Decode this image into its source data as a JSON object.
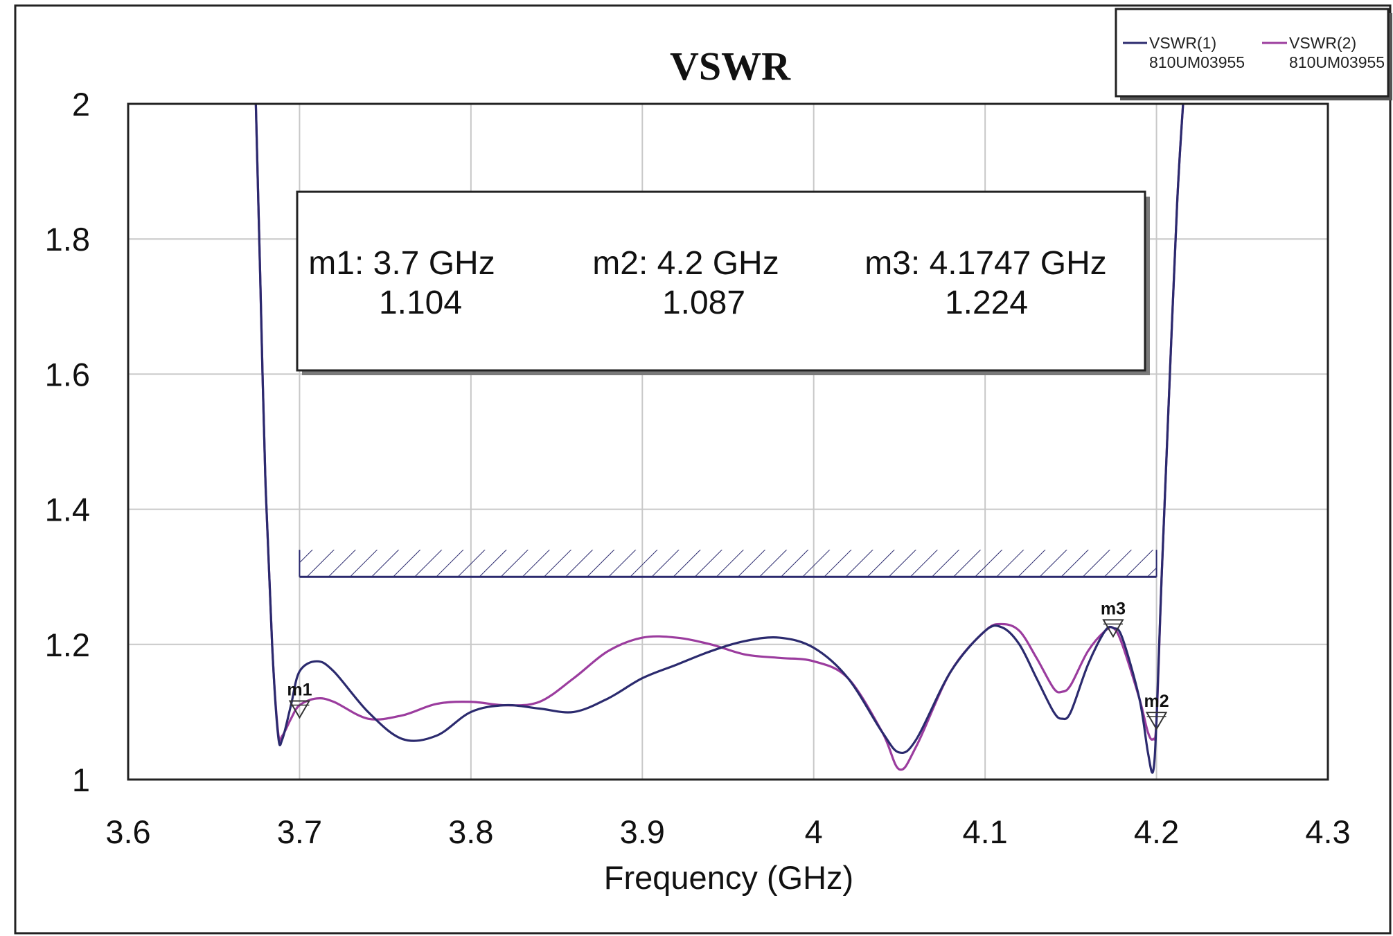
{
  "chart_data": {
    "type": "line",
    "title": "VSWR",
    "xlabel": "Frequency (GHz)",
    "ylabel": "",
    "xlim": [
      3.6,
      4.3
    ],
    "ylim": [
      1,
      2
    ],
    "x_ticks": [
      "3.6",
      "3.7",
      "3.8",
      "3.9",
      "4",
      "4.1",
      "4.2",
      "4.3"
    ],
    "y_ticks": [
      "1",
      "1.2",
      "1.4",
      "1.6",
      "1.8",
      "2"
    ],
    "grid": true,
    "legend_position": "top-right",
    "series": [
      {
        "name": "VSWR(1)",
        "subname": "810UM03955",
        "color": "#2b2a6e",
        "x": [
          3.6745,
          3.677,
          3.68,
          3.684,
          3.6875,
          3.69,
          3.695,
          3.7,
          3.71,
          3.72,
          3.74,
          3.76,
          3.78,
          3.8,
          3.82,
          3.84,
          3.86,
          3.88,
          3.9,
          3.92,
          3.94,
          3.96,
          3.98,
          4.0,
          4.02,
          4.04,
          4.05,
          4.06,
          4.08,
          4.1,
          4.11,
          4.12,
          4.13,
          4.14,
          4.145,
          4.15,
          4.16,
          4.17,
          4.175,
          4.18,
          4.19,
          4.195,
          4.198,
          4.2,
          4.203,
          4.207,
          4.212,
          4.2155
        ],
        "y": [
          2.0,
          1.75,
          1.45,
          1.2,
          1.065,
          1.06,
          1.11,
          1.16,
          1.175,
          1.16,
          1.1,
          1.06,
          1.065,
          1.1,
          1.11,
          1.105,
          1.1,
          1.12,
          1.15,
          1.17,
          1.19,
          1.205,
          1.21,
          1.195,
          1.15,
          1.07,
          1.04,
          1.06,
          1.16,
          1.22,
          1.225,
          1.2,
          1.15,
          1.1,
          1.09,
          1.1,
          1.17,
          1.22,
          1.224,
          1.21,
          1.12,
          1.04,
          1.012,
          1.087,
          1.3,
          1.55,
          1.85,
          2.0
        ]
      },
      {
        "name": "VSWR(2)",
        "subname": "810UM03955",
        "color": "#9b3c9e",
        "x": [
          3.6745,
          3.677,
          3.68,
          3.684,
          3.6875,
          3.69,
          3.695,
          3.7,
          3.71,
          3.72,
          3.74,
          3.76,
          3.78,
          3.8,
          3.82,
          3.84,
          3.86,
          3.88,
          3.9,
          3.92,
          3.94,
          3.96,
          3.98,
          4.0,
          4.02,
          4.04,
          4.05,
          4.06,
          4.08,
          4.1,
          4.11,
          4.12,
          4.13,
          4.14,
          4.145,
          4.15,
          4.16,
          4.17,
          4.175,
          4.18,
          4.19,
          4.195,
          4.198,
          4.2,
          4.203,
          4.207,
          4.212,
          4.2155
        ],
        "y": [
          2.0,
          1.75,
          1.45,
          1.2,
          1.07,
          1.065,
          1.09,
          1.11,
          1.12,
          1.115,
          1.09,
          1.095,
          1.112,
          1.115,
          1.11,
          1.115,
          1.15,
          1.19,
          1.21,
          1.21,
          1.2,
          1.185,
          1.18,
          1.175,
          1.15,
          1.07,
          1.015,
          1.05,
          1.16,
          1.22,
          1.23,
          1.22,
          1.18,
          1.135,
          1.13,
          1.14,
          1.19,
          1.22,
          1.224,
          1.2,
          1.12,
          1.07,
          1.06,
          1.087,
          1.3,
          1.55,
          1.85,
          2.0
        ]
      }
    ],
    "spec_band": {
      "x": [
        3.7,
        4.2
      ],
      "y": [
        1.3,
        1.34
      ]
    },
    "markers": [
      {
        "name": "m1",
        "x": 3.7,
        "y": 1.104
      },
      {
        "name": "m2",
        "x": 4.2,
        "y": 1.087
      },
      {
        "name": "m3",
        "x": 4.1747,
        "y": 1.224
      }
    ],
    "marker_table": [
      {
        "line1": "m1: 3.7 GHz",
        "line2": "1.104"
      },
      {
        "line1": "m2: 4.2 GHz",
        "line2": "1.087"
      },
      {
        "line1": "m3: 4.1747 GHz",
        "line2": "1.224"
      }
    ]
  }
}
